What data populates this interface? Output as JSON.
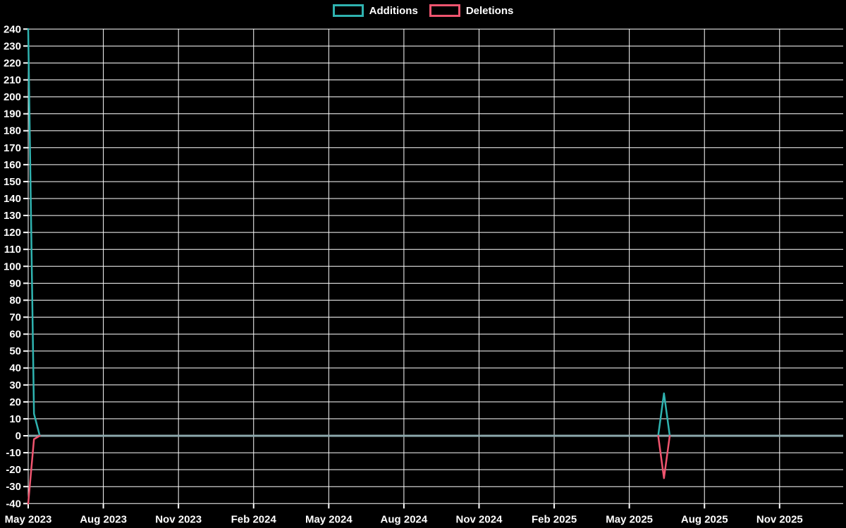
{
  "background_color": "#000000",
  "legend": {
    "position": "top-center",
    "items": [
      {
        "label": "Additions",
        "color": "#2fb3b0"
      },
      {
        "label": "Deletions",
        "color": "#f0556f"
      }
    ]
  },
  "chart_data": {
    "type": "line",
    "title": "",
    "xlabel": "",
    "ylabel": "",
    "x_unit": "week",
    "weeks_total": 142,
    "weeks_per_x_tick": 13,
    "x_tick_labels": [
      "May 2023",
      "Aug 2023",
      "Nov 2023",
      "Feb 2024",
      "May 2024",
      "Aug 2024",
      "Nov 2024",
      "Feb 2025",
      "May 2025",
      "Aug 2025",
      "Nov 2025"
    ],
    "ylim": [
      -40,
      240
    ],
    "y_tick_step": 10,
    "grid": true,
    "gridline_color": "#ffffff",
    "axis_text_color": "#ffffff",
    "zero_line_color": "#8ca8ad",
    "series": [
      {
        "name": "Additions",
        "color": "#2fb3b0",
        "baseline": 0,
        "nonzero_points": [
          {
            "week": 0,
            "value": 240
          },
          {
            "week": 1,
            "value": 13
          },
          {
            "week": 110,
            "value": 25
          }
        ]
      },
      {
        "name": "Deletions",
        "color": "#f0556f",
        "baseline": 0,
        "nonzero_points": [
          {
            "week": 0,
            "value": -40
          },
          {
            "week": 1,
            "value": -2
          },
          {
            "week": 110,
            "value": -25
          }
        ]
      }
    ]
  }
}
